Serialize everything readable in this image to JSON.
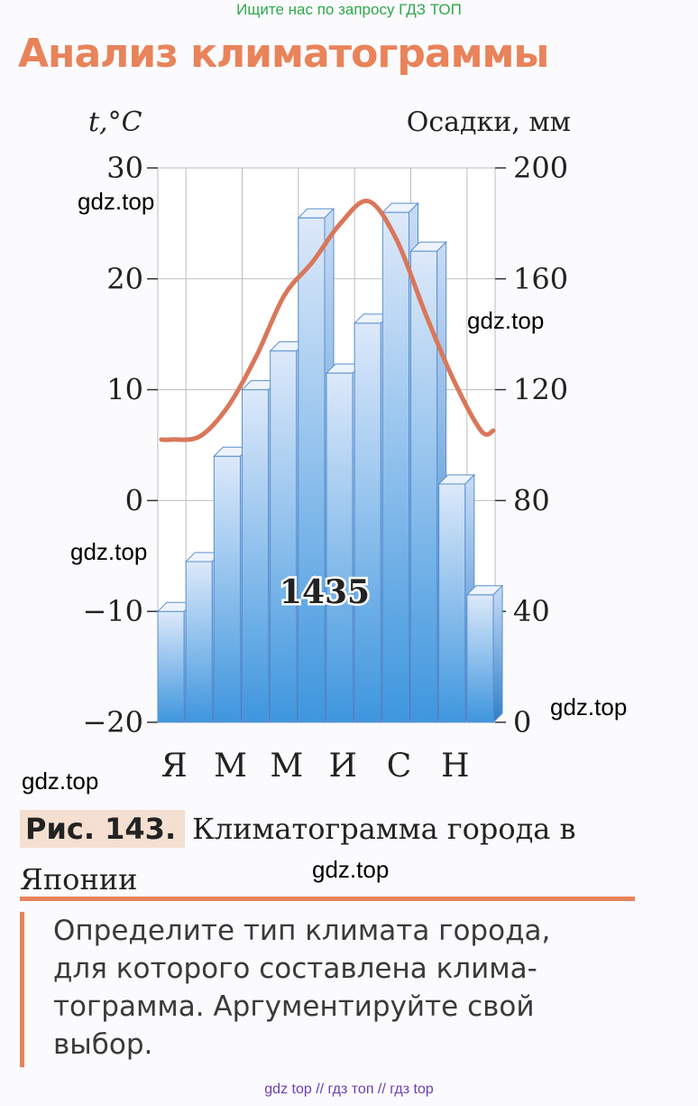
{
  "banner": "Ищите нас по запросу ГДЗ ТОП",
  "heading": "Анализ климатограммы",
  "watermarks": [
    "gdz.top",
    "gdz.top",
    "gdz.top",
    "gdz.top",
    "gdz.top",
    "gdz.top"
  ],
  "caption": {
    "label": "Рис. 143.",
    "text": "Климатограмма города в Японии"
  },
  "task": "Определите тип климата города,\nдля которого составлена клима-\nтограмма. Аргументируйте свой\nвыбор.",
  "footer": "gdz top  //  гдз топ  //  гдз top",
  "colors": {
    "heading": "#e8835a",
    "temperature_line": "#d9775a",
    "bar_top": "#dde9fa",
    "bar_bottom": "#3e96de",
    "watermark_banner": "#2ea84a",
    "footer": "#6b3fb2"
  },
  "chart_data": {
    "type": "bar",
    "categories": [
      "Я",
      "",
      "М",
      "",
      "М",
      "",
      "И",
      "",
      "С",
      "",
      "Н",
      ""
    ],
    "left_axis": {
      "label": "t,°C",
      "ticks": [
        "30",
        "20",
        "10",
        "0",
        "−10",
        "−20"
      ],
      "ylim": [
        -20,
        30
      ]
    },
    "right_axis": {
      "label": "Осадки, мм",
      "ticks": [
        "200",
        "160",
        "120",
        "80",
        "40",
        "0"
      ],
      "ylim": [
        0,
        200
      ]
    },
    "series": [
      {
        "type": "bar",
        "axis": "right",
        "values": [
          40,
          58,
          96,
          120,
          134,
          182,
          126,
          144,
          184,
          170,
          86,
          46
        ]
      },
      {
        "type": "line",
        "axis": "left",
        "values": [
          5.5,
          5.8,
          8.5,
          13.0,
          18.5,
          21.5,
          25.0,
          27.0,
          23.5,
          17.0,
          11.0,
          6.3
        ]
      }
    ],
    "annotation": "1435",
    "grid": true
  }
}
